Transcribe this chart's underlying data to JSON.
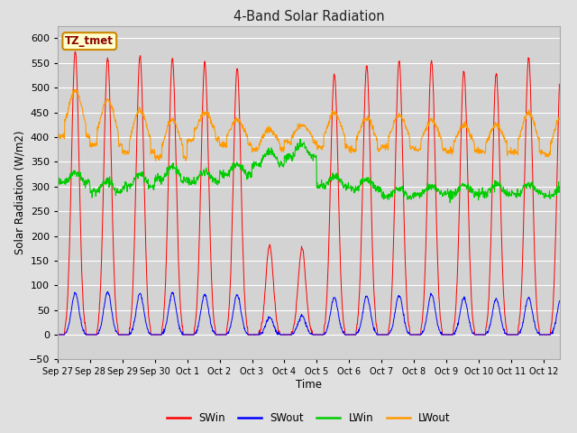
{
  "title": "4-Band Solar Radiation",
  "xlabel": "Time",
  "ylabel": "Solar Radiation (W/m2)",
  "ylim": [
    -50,
    625
  ],
  "yticks": [
    -50,
    0,
    50,
    100,
    150,
    200,
    250,
    300,
    350,
    400,
    450,
    500,
    550,
    600
  ],
  "fig_bg": "#e0e0e0",
  "axes_bg": "#d3d3d3",
  "grid_color": "#ffffff",
  "line_colors": {
    "SWin": "#ff0000",
    "SWout": "#0000ff",
    "LWin": "#00cc00",
    "LWout": "#ff9900"
  },
  "annotation_text": "TZ_tmet",
  "annotation_fg": "#8b0000",
  "annotation_bg": "#ffffcc",
  "annotation_border": "#cc8800",
  "x_tick_labels": [
    "Sep 27",
    "Sep 28",
    "Sep 29",
    "Sep 30",
    "Oct 1",
    "Oct 2",
    "Oct 3",
    "Oct 4",
    "Oct 5",
    "Oct 6",
    "Oct 7",
    "Oct 8",
    "Oct 9",
    "Oct 10",
    "Oct 11",
    "Oct 12"
  ],
  "total_days": 15.5
}
